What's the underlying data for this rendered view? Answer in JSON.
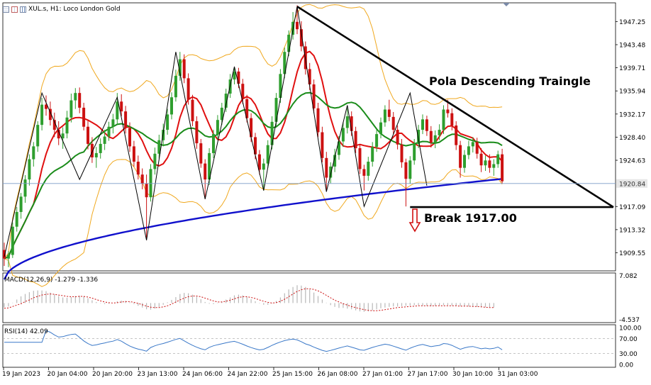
{
  "header": {
    "title": "XUL.s, H1:  Loco London Gold",
    "icons": [
      "list-icon",
      "table-icon",
      "bar-chart-icon"
    ]
  },
  "annotations": {
    "pattern_label": "Pola Descending Traingle",
    "break_label": "Break 1917.00"
  },
  "colors": {
    "candle_up": "#2e9e2e",
    "candle_down": "#cc1111",
    "ma_fast": "#e01010",
    "ma_medium": "#1a8c1a",
    "ma_slow": "#1010cc",
    "bollinger": "#f0a81e",
    "zigzag": "#000000",
    "trendline": "#000000",
    "macd_signal": "#cc1111",
    "macd_hist": "#b8b8b8",
    "rsi_line": "#3a78c8",
    "break_arrow": "#d11111",
    "grid_text": "#000000",
    "current_price_line": "#7a9ac8"
  },
  "chart_data": {
    "type": "candlestick",
    "symbol": "XUL.s",
    "timeframe": "H1",
    "instrument": "Loco London Gold",
    "price_axis": {
      "ticks": [
        "1947.25",
        "1943.48",
        "1939.71",
        "1935.94",
        "1932.17",
        "1928.40",
        "1924.63",
        "1920.84",
        "1917.09",
        "1913.32",
        "1909.55"
      ],
      "ylim": [
        1906.6,
        1950.3
      ],
      "current_price": 1920.84,
      "current_price_label": "1920.84"
    },
    "time_axis": {
      "labels": [
        "19 Jan 2023",
        "20 Jan 04:00",
        "20 Jan 20:00",
        "23 Jan 13:00",
        "24 Jan 06:00",
        "24 Jan 22:00",
        "25 Jan 15:00",
        "26 Jan 08:00",
        "27 Jan 01:00",
        "27 Jan 17:00",
        "30 Jan 10:00",
        "31 Jan 03:00"
      ]
    },
    "candles": [
      [
        1910.0,
        1911.2,
        1907.4,
        1908.6
      ],
      [
        1908.6,
        1909.8,
        1907.2,
        1909.2
      ],
      [
        1909.2,
        1914.5,
        1908.7,
        1913.8
      ],
      [
        1913.8,
        1917.0,
        1913.0,
        1916.2
      ],
      [
        1916.2,
        1919.3,
        1915.1,
        1918.7
      ],
      [
        1918.7,
        1922.2,
        1917.7,
        1921.5
      ],
      [
        1921.5,
        1925.6,
        1920.5,
        1924.8
      ],
      [
        1924.8,
        1927.6,
        1923.6,
        1926.9
      ],
      [
        1926.9,
        1931.0,
        1926.0,
        1930.4
      ],
      [
        1930.4,
        1934.8,
        1929.5,
        1933.7
      ],
      [
        1933.7,
        1935.2,
        1931.9,
        1933.0
      ],
      [
        1933.0,
        1934.2,
        1930.3,
        1931.2
      ],
      [
        1931.2,
        1932.4,
        1928.4,
        1929.6
      ],
      [
        1929.6,
        1931.0,
        1927.1,
        1928.2
      ],
      [
        1928.2,
        1930.0,
        1926.5,
        1929.0
      ],
      [
        1929.0,
        1932.7,
        1928.2,
        1931.6
      ],
      [
        1931.6,
        1935.5,
        1930.8,
        1934.4
      ],
      [
        1934.4,
        1936.4,
        1933.0,
        1935.6
      ],
      [
        1935.6,
        1936.5,
        1932.3,
        1933.2
      ],
      [
        1933.2,
        1934.0,
        1929.5,
        1930.1
      ],
      [
        1930.1,
        1931.1,
        1926.4,
        1927.3
      ],
      [
        1927.3,
        1928.4,
        1924.2,
        1925.1
      ],
      [
        1925.1,
        1926.8,
        1923.4,
        1925.8
      ],
      [
        1925.8,
        1928.2,
        1924.9,
        1927.3
      ],
      [
        1927.3,
        1929.6,
        1926.3,
        1928.5
      ],
      [
        1928.5,
        1930.9,
        1927.8,
        1930.1
      ],
      [
        1930.1,
        1932.2,
        1929.0,
        1931.3
      ],
      [
        1931.3,
        1935.6,
        1930.6,
        1934.2
      ],
      [
        1934.2,
        1935.4,
        1931.8,
        1932.6
      ],
      [
        1932.6,
        1933.5,
        1929.0,
        1929.9
      ],
      [
        1929.9,
        1930.8,
        1926.0,
        1926.9
      ],
      [
        1926.9,
        1927.8,
        1923.6,
        1924.4
      ],
      [
        1924.4,
        1925.4,
        1921.5,
        1922.3
      ],
      [
        1922.3,
        1923.3,
        1919.9,
        1920.8
      ],
      [
        1920.8,
        1922.3,
        1911.6,
        1918.6
      ],
      [
        1918.6,
        1924.0,
        1917.9,
        1923.2
      ],
      [
        1923.2,
        1926.7,
        1922.3,
        1925.7
      ],
      [
        1925.7,
        1928.8,
        1924.9,
        1927.9
      ],
      [
        1927.9,
        1930.6,
        1926.9,
        1929.6
      ],
      [
        1929.6,
        1933.0,
        1928.8,
        1932.1
      ],
      [
        1932.1,
        1935.7,
        1931.3,
        1934.9
      ],
      [
        1934.9,
        1939.4,
        1934.2,
        1938.4
      ],
      [
        1938.4,
        1942.3,
        1937.6,
        1941.1
      ],
      [
        1941.1,
        1941.9,
        1937.2,
        1938.0
      ],
      [
        1938.0,
        1938.8,
        1933.7,
        1934.5
      ],
      [
        1934.5,
        1935.3,
        1930.2,
        1931.0
      ],
      [
        1931.0,
        1931.8,
        1926.5,
        1927.4
      ],
      [
        1927.4,
        1928.1,
        1923.4,
        1924.1
      ],
      [
        1924.1,
        1924.8,
        1918.3,
        1921.5
      ],
      [
        1921.5,
        1926.6,
        1920.6,
        1925.8
      ],
      [
        1925.8,
        1929.6,
        1925.0,
        1928.9
      ],
      [
        1928.9,
        1932.0,
        1928.1,
        1931.2
      ],
      [
        1931.2,
        1934.0,
        1930.4,
        1933.2
      ],
      [
        1933.2,
        1936.3,
        1932.5,
        1935.5
      ],
      [
        1935.5,
        1938.7,
        1934.8,
        1937.8
      ],
      [
        1937.8,
        1939.9,
        1937.0,
        1939.1
      ],
      [
        1939.1,
        1939.7,
        1936.4,
        1937.1
      ],
      [
        1937.1,
        1937.9,
        1933.8,
        1934.6
      ],
      [
        1934.6,
        1935.3,
        1930.8,
        1931.5
      ],
      [
        1931.5,
        1932.3,
        1927.6,
        1928.4
      ],
      [
        1928.4,
        1929.1,
        1924.8,
        1925.6
      ],
      [
        1925.6,
        1926.3,
        1922.3,
        1923.1
      ],
      [
        1923.1,
        1924.9,
        1919.7,
        1924.1
      ],
      [
        1924.1,
        1927.9,
        1923.4,
        1927.1
      ],
      [
        1927.1,
        1931.8,
        1926.4,
        1930.9
      ],
      [
        1930.9,
        1935.6,
        1930.1,
        1934.8
      ],
      [
        1934.8,
        1939.5,
        1934.0,
        1938.7
      ],
      [
        1938.7,
        1943.0,
        1938.0,
        1942.3
      ],
      [
        1942.3,
        1945.8,
        1941.6,
        1945.1
      ],
      [
        1945.1,
        1948.8,
        1944.3,
        1947.2
      ],
      [
        1947.2,
        1949.9,
        1945.2,
        1946.0
      ],
      [
        1946.0,
        1947.3,
        1942.4,
        1943.2
      ],
      [
        1943.2,
        1944.0,
        1938.6,
        1939.5
      ],
      [
        1939.5,
        1940.5,
        1936.1,
        1937.0
      ],
      [
        1937.0,
        1937.8,
        1932.3,
        1933.1
      ],
      [
        1933.1,
        1934.0,
        1928.4,
        1929.2
      ],
      [
        1929.2,
        1930.1,
        1924.3,
        1925.0
      ],
      [
        1925.0,
        1926.0,
        1919.5,
        1921.8
      ],
      [
        1921.8,
        1924.3,
        1920.9,
        1923.6
      ],
      [
        1923.6,
        1926.5,
        1922.7,
        1925.5
      ],
      [
        1925.5,
        1928.6,
        1924.7,
        1927.7
      ],
      [
        1927.7,
        1930.9,
        1926.8,
        1929.9
      ],
      [
        1929.9,
        1933.1,
        1929.0,
        1931.8
      ],
      [
        1931.8,
        1932.6,
        1928.6,
        1929.4
      ],
      [
        1929.4,
        1930.1,
        1925.8,
        1926.6
      ],
      [
        1926.6,
        1927.3,
        1922.4,
        1923.2
      ],
      [
        1923.2,
        1923.9,
        1919.7,
        1922.1
      ],
      [
        1922.1,
        1925.2,
        1921.3,
        1924.4
      ],
      [
        1924.4,
        1927.6,
        1923.6,
        1926.8
      ],
      [
        1926.8,
        1929.7,
        1926.0,
        1928.9
      ],
      [
        1928.9,
        1931.6,
        1928.2,
        1930.8
      ],
      [
        1930.8,
        1933.6,
        1930.1,
        1932.9
      ],
      [
        1932.9,
        1934.5,
        1931.0,
        1931.7
      ],
      [
        1931.7,
        1932.5,
        1928.9,
        1929.6
      ],
      [
        1929.6,
        1930.3,
        1926.4,
        1927.2
      ],
      [
        1927.2,
        1928.1,
        1923.4,
        1924.3
      ],
      [
        1924.3,
        1924.9,
        1917.1,
        1921.6
      ],
      [
        1921.6,
        1925.3,
        1920.8,
        1924.6
      ],
      [
        1924.6,
        1928.1,
        1923.9,
        1927.3
      ],
      [
        1927.3,
        1930.4,
        1926.6,
        1929.6
      ],
      [
        1929.6,
        1932.1,
        1928.9,
        1931.3
      ],
      [
        1931.3,
        1931.9,
        1928.6,
        1929.4
      ],
      [
        1929.4,
        1930.2,
        1926.7,
        1927.5
      ],
      [
        1927.5,
        1929.5,
        1926.6,
        1928.7
      ],
      [
        1928.7,
        1930.5,
        1927.9,
        1929.6
      ],
      [
        1929.6,
        1933.6,
        1928.9,
        1932.9
      ],
      [
        1932.9,
        1934.5,
        1931.6,
        1932.3
      ],
      [
        1932.3,
        1933.1,
        1929.5,
        1930.3
      ],
      [
        1930.3,
        1931.0,
        1926.3,
        1927.1
      ],
      [
        1927.1,
        1927.8,
        1921.8,
        1923.4
      ],
      [
        1923.4,
        1926.3,
        1922.6,
        1925.5
      ],
      [
        1925.5,
        1927.8,
        1924.8,
        1926.9
      ],
      [
        1926.9,
        1928.4,
        1925.9,
        1927.6
      ],
      [
        1927.6,
        1928.3,
        1924.9,
        1925.7
      ],
      [
        1925.7,
        1926.6,
        1922.7,
        1923.8
      ],
      [
        1923.8,
        1925.4,
        1922.9,
        1924.6
      ],
      [
        1924.6,
        1925.6,
        1922.6,
        1923.4
      ],
      [
        1923.4,
        1924.8,
        1922.1,
        1924.0
      ],
      [
        1924.0,
        1926.2,
        1923.4,
        1925.6
      ],
      [
        1925.6,
        1926.5,
        1920.8,
        1921.2
      ]
    ],
    "indicators": {
      "zigzag": {
        "points": [
          [
            0,
            1908.9
          ],
          [
            9,
            1935.6
          ],
          [
            18,
            1921.5
          ],
          [
            27,
            1934.9
          ],
          [
            34,
            1911.6
          ],
          [
            41,
            1942.3
          ],
          [
            48,
            1918.3
          ],
          [
            55,
            1939.9
          ],
          [
            62,
            1919.7
          ],
          [
            70,
            1949.7
          ],
          [
            77,
            1919.5
          ],
          [
            82,
            1933.6
          ],
          [
            86,
            1917.1
          ],
          [
            97,
            1935.6
          ],
          [
            101,
            1920.5
          ]
        ]
      },
      "macd": {
        "label": "MACD(12,26,9) -1.279 -1.336",
        "axis_ticks": [
          "7.082",
          "-4.537"
        ],
        "range": [
          -5.0,
          8.0
        ],
        "histogram": [
          -1.2,
          -1.0,
          0.1,
          1.0,
          1.9,
          2.6,
          3.1,
          3.5,
          3.6,
          3.6,
          3.4,
          3.0,
          2.5,
          2.0,
          1.6,
          1.5,
          1.7,
          2.0,
          2.1,
          1.9,
          1.4,
          0.8,
          0.3,
          -0.1,
          -0.3,
          -0.2,
          0.0,
          0.5,
          0.7,
          0.6,
          0.2,
          -0.3,
          -0.8,
          -1.3,
          -1.8,
          -1.9,
          -1.6,
          -1.1,
          -0.5,
          0.2,
          0.9,
          1.7,
          2.6,
          2.9,
          2.8,
          2.4,
          1.8,
          1.1,
          0.3,
          -0.2,
          -0.3,
          -0.1,
          0.4,
          1.0,
          1.6,
          2.2,
          2.4,
          2.2,
          1.7,
          1.1,
          0.5,
          -0.1,
          -0.5,
          -0.5,
          -0.1,
          0.6,
          1.6,
          2.8,
          3.9,
          4.6,
          5.1,
          5.0,
          4.6,
          3.9,
          3.0,
          2.0,
          1.0,
          0.1,
          -0.6,
          -1.1,
          -1.4,
          -1.4,
          -1.6,
          -1.8,
          -2.1,
          -2.4,
          -2.5,
          -2.4,
          -2.1,
          -1.8,
          -1.5,
          -1.3,
          -1.1,
          -1.0,
          -1.0,
          -0.9,
          -0.8,
          -0.7,
          -0.6,
          -0.6,
          -0.7,
          -0.8,
          -0.9,
          -0.8,
          -0.7,
          -0.6,
          -0.6,
          -0.7,
          -0.8,
          -0.9,
          -0.9,
          -1.0,
          -1.0,
          -1.1,
          -1.1,
          -1.2,
          -1.2,
          -1.3
        ],
        "signal": [
          -1.5,
          -1.4,
          -1.0,
          -0.6,
          -0.2,
          0.4,
          0.9,
          1.5,
          1.9,
          2.3,
          2.5,
          2.6,
          2.5,
          2.3,
          2.1,
          1.9,
          1.8,
          1.8,
          1.9,
          1.9,
          1.7,
          1.4,
          1.0,
          0.6,
          0.3,
          0.1,
          0.0,
          0.1,
          0.3,
          0.4,
          0.4,
          0.2,
          -0.1,
          -0.5,
          -0.9,
          -1.2,
          -1.3,
          -1.3,
          -1.1,
          -0.8,
          -0.3,
          0.3,
          0.9,
          1.4,
          1.8,
          2.0,
          2.0,
          1.8,
          1.4,
          1.0,
          0.6,
          0.3,
          0.3,
          0.5,
          0.8,
          1.2,
          1.6,
          1.8,
          1.8,
          1.6,
          1.3,
          0.9,
          0.5,
          0.2,
          0.0,
          0.1,
          0.5,
          1.1,
          1.8,
          2.6,
          3.3,
          3.8,
          4.1,
          4.1,
          3.9,
          3.5,
          2.9,
          2.2,
          1.5,
          0.8,
          0.3,
          -0.2,
          -0.6,
          -1.0,
          -1.3,
          -1.6,
          -1.9,
          -2.1,
          -2.2,
          -2.2,
          -2.1,
          -1.9,
          -1.7,
          -1.5,
          -1.3,
          -1.2,
          -1.1,
          -1.0,
          -0.9,
          -0.8,
          -0.8,
          -0.8,
          -0.8,
          -0.8,
          -0.8,
          -0.8,
          -0.8,
          -0.8,
          -0.8,
          -0.9,
          -0.9,
          -0.9,
          -1.0,
          -1.0,
          -1.1,
          -1.2,
          -1.3,
          -1.3
        ]
      },
      "rsi": {
        "label": "RSI(14) 42.09",
        "period": 14,
        "axis_ticks": [
          "100.00",
          "70.00",
          "30.00",
          "0.00"
        ],
        "levels": [
          70,
          30
        ]
      }
    }
  }
}
